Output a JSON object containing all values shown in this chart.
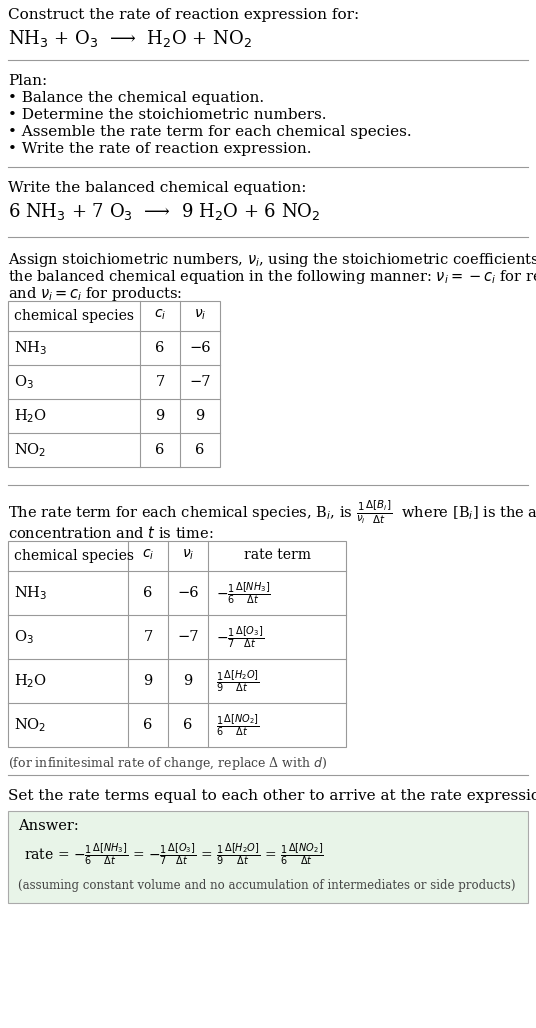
{
  "bg_color": "#ffffff",
  "text_color": "#000000",
  "title_line1": "Construct the rate of reaction expression for:",
  "reaction_unbalanced": "NH$_3$ + O$_3$  ⟶  H$_2$O + NO$_2$",
  "plan_header": "Plan:",
  "plan_items": [
    "• Balance the chemical equation.",
    "• Determine the stoichiometric numbers.",
    "• Assemble the rate term for each chemical species.",
    "• Write the rate of reaction expression."
  ],
  "balanced_header": "Write the balanced chemical equation:",
  "balanced_eq": "6 NH$_3$ + 7 O$_3$  ⟶  9 H$_2$O + 6 NO$_2$",
  "stoich_header_line1": "Assign stoichiometric numbers, $\\nu_i$, using the stoichiometric coefficients, $c_i$, from",
  "stoich_header_line2": "the balanced chemical equation in the following manner: $\\nu_i = -c_i$ for reactants",
  "stoich_header_line3": "and $\\nu_i = c_i$ for products:",
  "table1_rows": [
    [
      "NH$_3$",
      "6",
      "−6"
    ],
    [
      "O$_3$",
      "7",
      "−7"
    ],
    [
      "H$_2$O",
      "9",
      "9"
    ],
    [
      "NO$_2$",
      "6",
      "6"
    ]
  ],
  "rate_header_line1": "The rate term for each chemical species, B$_i$, is $\\frac{1}{\\nu_i}\\frac{\\Delta[B_i]}{\\Delta t}$  where [B$_i$] is the amount",
  "rate_header_line2": "concentration and $t$ is time:",
  "table2_rows": [
    [
      "NH$_3$",
      "6",
      "−6",
      "$-\\frac{1}{6}\\frac{\\Delta[NH_3]}{\\Delta t}$"
    ],
    [
      "O$_3$",
      "7",
      "−7",
      "$-\\frac{1}{7}\\frac{\\Delta[O_3]}{\\Delta t}$"
    ],
    [
      "H$_2$O",
      "9",
      "9",
      "$\\frac{1}{9}\\frac{\\Delta[H_2O]}{\\Delta t}$"
    ],
    [
      "NO$_2$",
      "6",
      "6",
      "$\\frac{1}{6}\\frac{\\Delta[NO_2]}{\\Delta t}$"
    ]
  ],
  "infinitesimal_note": "(for infinitesimal rate of change, replace Δ with $d$)",
  "set_rate_text": "Set the rate terms equal to each other to arrive at the rate expression:",
  "answer_label": "Answer:",
  "answer_box_color": "#e8f4e8",
  "answer_note": "(assuming constant volume and no accumulation of intermediates or side products)"
}
